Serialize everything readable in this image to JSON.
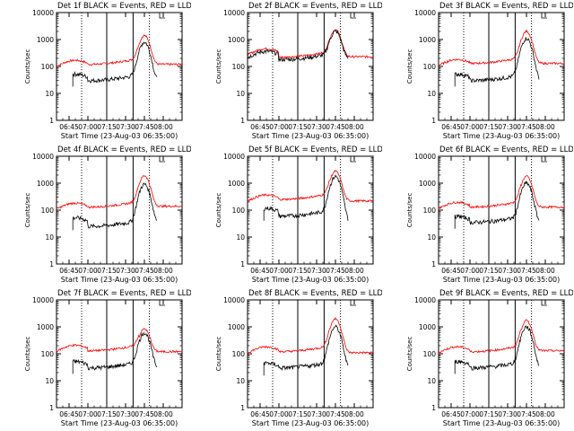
{
  "chart_data": {
    "type": "line",
    "ylabel": "Counts/sec",
    "xlabel": "Start Time (23-Aug-03 06:35:00)",
    "ylim": [
      1,
      10000
    ],
    "yscale": "log",
    "ytick_labels": [
      "1",
      "10",
      "100",
      "1000",
      "10000"
    ],
    "xlim_minutes": [
      0,
      100
    ],
    "xtick_labels": [
      "06:45",
      "07:00",
      "07:15",
      "07:30",
      "07:45",
      "08:00"
    ],
    "dotted_lines_labels": [
      "06:55",
      "07:49"
    ],
    "solid_lines_labels": [
      "07:15",
      "07:36"
    ],
    "colors": {
      "events": "#000000",
      "lld": "#ff0000"
    },
    "panels": [
      {
        "title": "Det 1f BLACK = Events, RED = LLD",
        "events": {
          "start": "06:48",
          "end": "07:55",
          "pre": 40,
          "base": 30,
          "peak": 800,
          "post": 30
        },
        "lld": {
          "pre": 130,
          "base": 120,
          "peak": 1400,
          "post": 120
        }
      },
      {
        "title": "Det 2f BLACK = Events, RED = LLD",
        "events": {
          "start": "06:35",
          "end": "07:55",
          "pre": 280,
          "base": 180,
          "peak": 2000,
          "post": 200
        },
        "lld": {
          "pre": 350,
          "base": 220,
          "peak": 2300,
          "post": 230
        }
      },
      {
        "title": "Det 3f BLACK = Events, RED = LLD",
        "events": {
          "start": "06:48",
          "end": "07:55",
          "pre": 40,
          "base": 30,
          "peak": 1100,
          "post": 30
        },
        "lld": {
          "pre": 140,
          "base": 130,
          "peak": 2000,
          "post": 130
        }
      },
      {
        "title": "Det 4f BLACK = Events, RED = LLD",
        "events": {
          "start": "06:48",
          "end": "07:55",
          "pre": 40,
          "base": 25,
          "peak": 900,
          "post": 35
        },
        "lld": {
          "pre": 140,
          "base": 130,
          "peak": 1900,
          "post": 140
        }
      },
      {
        "title": "Det 5f BLACK = Events, RED = LLD",
        "events": {
          "start": "06:48",
          "end": "07:55",
          "pre": 90,
          "base": 60,
          "peak": 1800,
          "post": 35
        },
        "lld": {
          "pre": 280,
          "base": 250,
          "peak": 2800,
          "post": 220
        }
      },
      {
        "title": "Det 6f BLACK = Events, RED = LLD",
        "events": {
          "start": "06:48",
          "end": "07:55",
          "pre": 45,
          "base": 35,
          "peak": 1000,
          "post": 35
        },
        "lld": {
          "pre": 150,
          "base": 130,
          "peak": 1800,
          "post": 130
        }
      },
      {
        "title": "Det 7f BLACK = Events, RED = LLD",
        "events": {
          "start": "06:48",
          "end": "07:55",
          "pre": 40,
          "base": 30,
          "peak": 600,
          "post": 30
        },
        "lld": {
          "pre": 160,
          "base": 130,
          "peak": 850,
          "post": 120
        }
      },
      {
        "title": "Det 8f BLACK = Events, RED = LLD",
        "events": {
          "start": "06:48",
          "end": "07:55",
          "pre": 35,
          "base": 30,
          "peak": 1000,
          "post": 30
        },
        "lld": {
          "pre": 140,
          "base": 120,
          "peak": 2000,
          "post": 110
        }
      },
      {
        "title": "Det 9f BLACK = Events, RED = LLD",
        "events": {
          "start": "06:48",
          "end": "07:55",
          "pre": 40,
          "base": 30,
          "peak": 1000,
          "post": 30
        },
        "lld": {
          "pre": 140,
          "base": 120,
          "peak": 1700,
          "post": 130
        }
      }
    ]
  }
}
